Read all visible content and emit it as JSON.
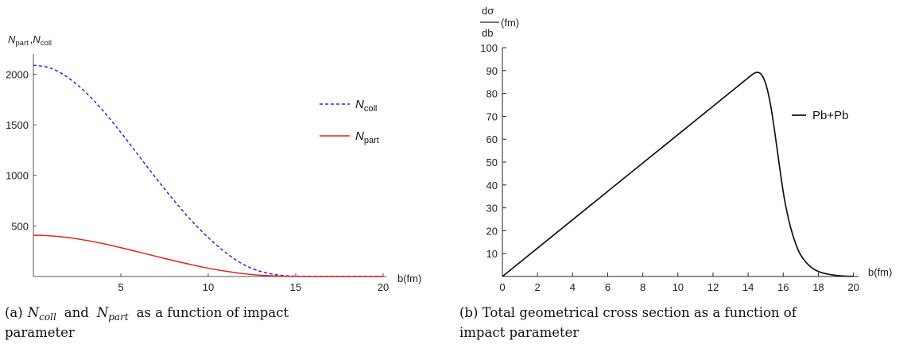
{
  "chart_data": [
    {
      "type": "line",
      "xlim": [
        0,
        20
      ],
      "ylim": [
        0,
        2200
      ],
      "xticks": [
        5,
        10,
        15,
        20
      ],
      "yticks": [
        500,
        1000,
        1500,
        2000
      ],
      "xlabel": "b(fm)",
      "ylabel": {
        "n1": "N",
        "s1": "part",
        "sep": ",",
        "n2": "N",
        "s2": "coll"
      },
      "grid": false,
      "legend_position": "right",
      "series": [
        {
          "name": "Ncoll",
          "legend": {
            "n": "N",
            "sub": "coll"
          },
          "color": "#2b2bd6",
          "style": "dashed",
          "x": [
            0,
            1,
            2,
            3,
            4,
            5,
            6,
            7,
            8,
            9,
            10,
            11,
            12,
            13,
            14,
            15,
            16,
            17,
            18,
            19,
            20
          ],
          "y": [
            2090,
            2060,
            1965,
            1820,
            1635,
            1425,
            1200,
            975,
            760,
            560,
            385,
            235,
            120,
            50,
            15,
            3,
            1,
            0,
            0,
            0,
            0
          ]
        },
        {
          "name": "Npart",
          "legend": {
            "n": "N",
            "sub": "part"
          },
          "color": "#e32222",
          "style": "solid",
          "x": [
            0,
            1,
            2,
            3,
            4,
            5,
            6,
            7,
            8,
            9,
            10,
            11,
            12,
            13,
            14,
            15,
            16,
            17,
            18,
            19,
            20
          ],
          "y": [
            408,
            402,
            385,
            358,
            325,
            285,
            243,
            200,
            158,
            118,
            82,
            52,
            28,
            12,
            4,
            1,
            0,
            0,
            0,
            0,
            0
          ]
        }
      ],
      "caption": {
        "label": "(a)",
        "n1": "N",
        "s1": "coll",
        "and": "and",
        "n2": "N",
        "s2": "part",
        "rest1": "as a function of impact",
        "rest2": "parameter"
      }
    },
    {
      "type": "line",
      "xlim": [
        0,
        20
      ],
      "ylim": [
        0,
        100
      ],
      "xticks": [
        0,
        2,
        4,
        6,
        8,
        10,
        12,
        14,
        16,
        18,
        20
      ],
      "yticks": [
        10,
        20,
        30,
        40,
        50,
        60,
        70,
        80,
        90,
        100
      ],
      "xlabel": "b(fm)",
      "ylabel": {
        "num": "dσ",
        "den": "db",
        "unit": "(fm)"
      },
      "grid": false,
      "legend_position": "right",
      "series": [
        {
          "name": "Pb+Pb",
          "color": "#111111",
          "style": "solid",
          "x": [
            0,
            2,
            4,
            6,
            8,
            10,
            12,
            13,
            13.5,
            14,
            14.3,
            14.5,
            14.7,
            14.9,
            15.1,
            15.3,
            15.5,
            15.7,
            15.9,
            16.1,
            16.4,
            16.7,
            17,
            17.5,
            18,
            18.5,
            19,
            19.5,
            20
          ],
          "y": [
            0,
            12.4,
            24.8,
            37.2,
            49.6,
            62,
            74.4,
            80.6,
            83.7,
            86.8,
            88.6,
            89.2,
            88.7,
            86.3,
            81.5,
            74,
            64,
            53,
            42,
            32.5,
            22,
            14.5,
            9.3,
            4.6,
            2.2,
            1.1,
            0.5,
            0.2,
            0.1
          ]
        }
      ],
      "caption": {
        "line1": "(b) Total geometrical cross section as a function of",
        "line2": "impact parameter"
      }
    }
  ]
}
